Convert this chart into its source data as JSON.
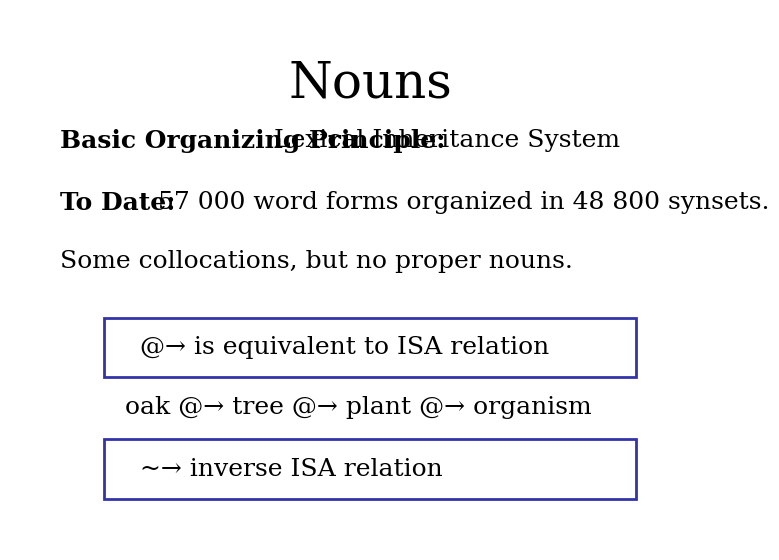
{
  "title": "Nouns",
  "title_fontsize": 36,
  "title_fontfamily": "serif",
  "background_color": "#ffffff",
  "text_color": "#000000",
  "box_color": "#3333aa",
  "line1_bold": "Basic Organizing Principle:",
  "line1_normal": " Lexical Inheritance System",
  "line2_bold": "To Date:",
  "line2_normal": " 57 000 word forms organized in 48 800 synsets.",
  "line3": "Some collocations, but no proper nouns.",
  "box1_text": "@→ is equivalent to ISA relation",
  "line5": "oak @→ tree @→ plant @→ organism",
  "box2_text": "~→ inverse ISA relation",
  "body_fontsize": 18,
  "body_fontfamily": "serif"
}
